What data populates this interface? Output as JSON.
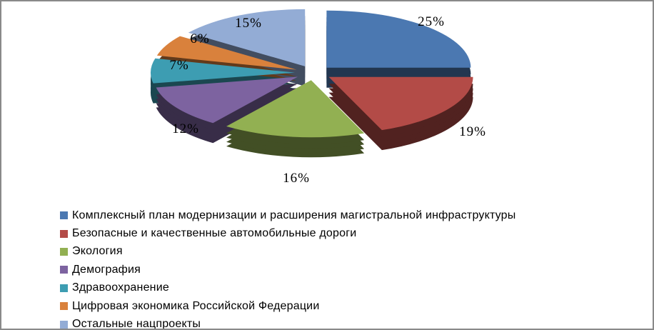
{
  "chart_data": {
    "type": "pie",
    "effect": "3d-exploded",
    "start_angle": 0,
    "direction": "clockwise",
    "unit": "%",
    "labels": [
      "Комплексный план модернизации и расширения магистральной инфраструктуры",
      "Безопасные и качественные автомобильные дороги",
      "Экология",
      "Демография",
      "Здравоохранение",
      "Цифровая экономика Российской Федерации",
      "Остальные нацпроекты"
    ],
    "values": [
      25,
      19,
      16,
      12,
      7,
      6,
      15
    ],
    "data_labels": [
      "25%",
      "19%",
      "16%",
      "12%",
      "7%",
      "6%",
      "15%"
    ],
    "colors": [
      "#4B78B1",
      "#B34B47",
      "#92B052",
      "#7D63A0",
      "#3D9DB2",
      "#D9813C",
      "#93ACD5"
    ],
    "legend_position": "bottom-left",
    "frame_border_color": "#898989"
  }
}
